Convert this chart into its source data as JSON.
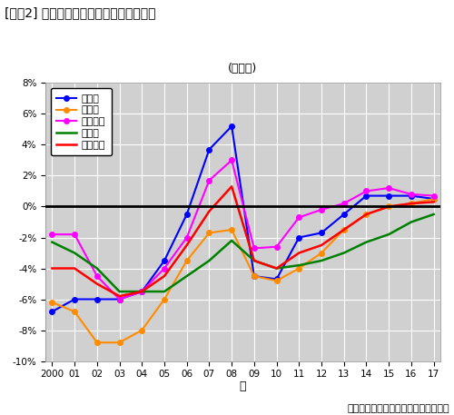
{
  "title": "[図表2] 圈域別の対前年地価変動率の推移",
  "subtitle": "(住宅地)",
  "source": "データ出所：国土交通省（地価公示）",
  "xlabel": "年",
  "years": [
    2000,
    2001,
    2002,
    2003,
    2004,
    2005,
    2006,
    2007,
    2008,
    2009,
    2010,
    2011,
    2012,
    2013,
    2014,
    2015,
    2016,
    2017
  ],
  "xtick_labels": [
    "2000",
    "01",
    "02",
    "03",
    "04",
    "05",
    "06",
    "07",
    "08",
    "09",
    "10",
    "11",
    "12",
    "13",
    "14",
    "15",
    "16",
    "17"
  ],
  "series": [
    {
      "name": "東京圈",
      "color": "#0000FF",
      "marker": "o",
      "linestyle": "-",
      "linewidth": 1.5,
      "markersize": 4,
      "values": [
        -6.8,
        -6.0,
        -6.0,
        -6.0,
        -5.5,
        -3.5,
        -0.5,
        3.7,
        5.2,
        -4.5,
        -4.7,
        -2.0,
        -1.7,
        -0.5,
        0.7,
        0.7,
        0.7,
        0.5
      ]
    },
    {
      "name": "大阪圈",
      "color": "#FF8C00",
      "marker": "o",
      "linestyle": "-",
      "linewidth": 1.5,
      "markersize": 4,
      "values": [
        -6.2,
        -6.8,
        -8.8,
        -8.8,
        -8.0,
        -6.0,
        -3.5,
        -1.7,
        -1.5,
        -4.5,
        -4.8,
        -4.0,
        -3.0,
        -1.5,
        -0.5,
        0.0,
        0.2,
        0.5
      ]
    },
    {
      "name": "名古屋圈",
      "color": "#FF00FF",
      "marker": "o",
      "linestyle": "-",
      "linewidth": 1.5,
      "markersize": 4,
      "values": [
        -1.8,
        -1.8,
        -4.5,
        -6.0,
        -5.5,
        -4.0,
        -2.0,
        1.7,
        3.0,
        -2.7,
        -2.6,
        -0.7,
        -0.2,
        0.2,
        1.0,
        1.2,
        0.8,
        0.7
      ]
    },
    {
      "name": "地方圈",
      "color": "#008000",
      "marker": null,
      "linestyle": "-",
      "linewidth": 1.8,
      "markersize": 0,
      "values": [
        -2.3,
        -3.0,
        -4.0,
        -5.5,
        -5.5,
        -5.5,
        -4.5,
        -3.5,
        -2.2,
        -3.5,
        -4.0,
        -3.8,
        -3.5,
        -3.0,
        -2.3,
        -1.8,
        -1.0,
        -0.5
      ]
    },
    {
      "name": "全国平均",
      "color": "#FF0000",
      "marker": null,
      "linestyle": "-",
      "linewidth": 1.8,
      "markersize": 0,
      "values": [
        -4.0,
        -4.0,
        -5.0,
        -5.8,
        -5.5,
        -4.5,
        -2.5,
        -0.3,
        1.3,
        -3.5,
        -4.0,
        -3.0,
        -2.5,
        -1.5,
        -0.5,
        0.0,
        0.2,
        0.3
      ]
    }
  ],
  "ylim": [
    -10,
    8
  ],
  "yticks": [
    -10,
    -8,
    -6,
    -4,
    -2,
    0,
    2,
    4,
    6,
    8
  ],
  "ytick_labels": [
    "-10%",
    "-8%",
    "-6%",
    "-4%",
    "-2%",
    "0%",
    "2%",
    "4%",
    "6%",
    "8%"
  ],
  "fig_bg_color": "#ffffff",
  "plot_bg_color": "#d0d0d0",
  "grid_color": "#ffffff",
  "zero_line_color": "#000000"
}
